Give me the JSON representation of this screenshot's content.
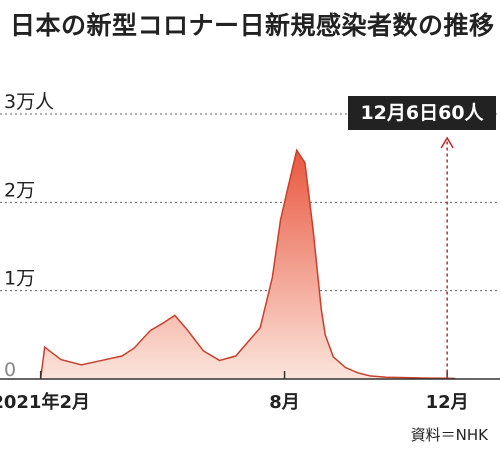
{
  "title": "日本の新型コロナー日新規感染者数の推移",
  "source": "資料＝NHK",
  "callout": "12月6日60人",
  "colors": {
    "area_top": "#e9573f",
    "area_bottom": "#fbe5dc",
    "line": "#c7402b",
    "marker": "#c0292b",
    "text": "#222222"
  },
  "chart_data": {
    "type": "area",
    "x_unit": "month",
    "xlim": [
      1,
      13.3
    ],
    "ylim": [
      0,
      30000
    ],
    "y_ticks": [
      {
        "value": 0,
        "label": "0"
      },
      {
        "value": 10000,
        "label": "1万"
      },
      {
        "value": 20000,
        "label": "2万"
      },
      {
        "value": 30000,
        "label": "3万人"
      }
    ],
    "x_ticks": [
      {
        "value": 2,
        "label": "2021年2月"
      },
      {
        "value": 8,
        "label": "8月"
      },
      {
        "value": 12,
        "label": "12月"
      }
    ],
    "x": [
      2.0,
      2.1,
      2.5,
      3.0,
      3.5,
      4.0,
      4.3,
      4.7,
      5.0,
      5.3,
      5.6,
      6.0,
      6.4,
      6.8,
      7.1,
      7.4,
      7.7,
      7.9,
      8.1,
      8.3,
      8.5,
      8.7,
      8.9,
      9.0,
      9.2,
      9.5,
      9.8,
      10.1,
      10.5,
      11.0,
      11.5,
      12.0,
      12.2
    ],
    "y": [
      50,
      3600,
      2200,
      1600,
      2100,
      2600,
      3500,
      5500,
      6300,
      7200,
      5600,
      3200,
      2100,
      2600,
      4200,
      5800,
      11500,
      18000,
      22000,
      25900,
      24500,
      17000,
      8000,
      5000,
      2500,
      1300,
      700,
      350,
      200,
      150,
      100,
      80,
      60
    ],
    "annotation": {
      "x": 12.0,
      "y": 60,
      "label": "12月6日60人"
    }
  }
}
